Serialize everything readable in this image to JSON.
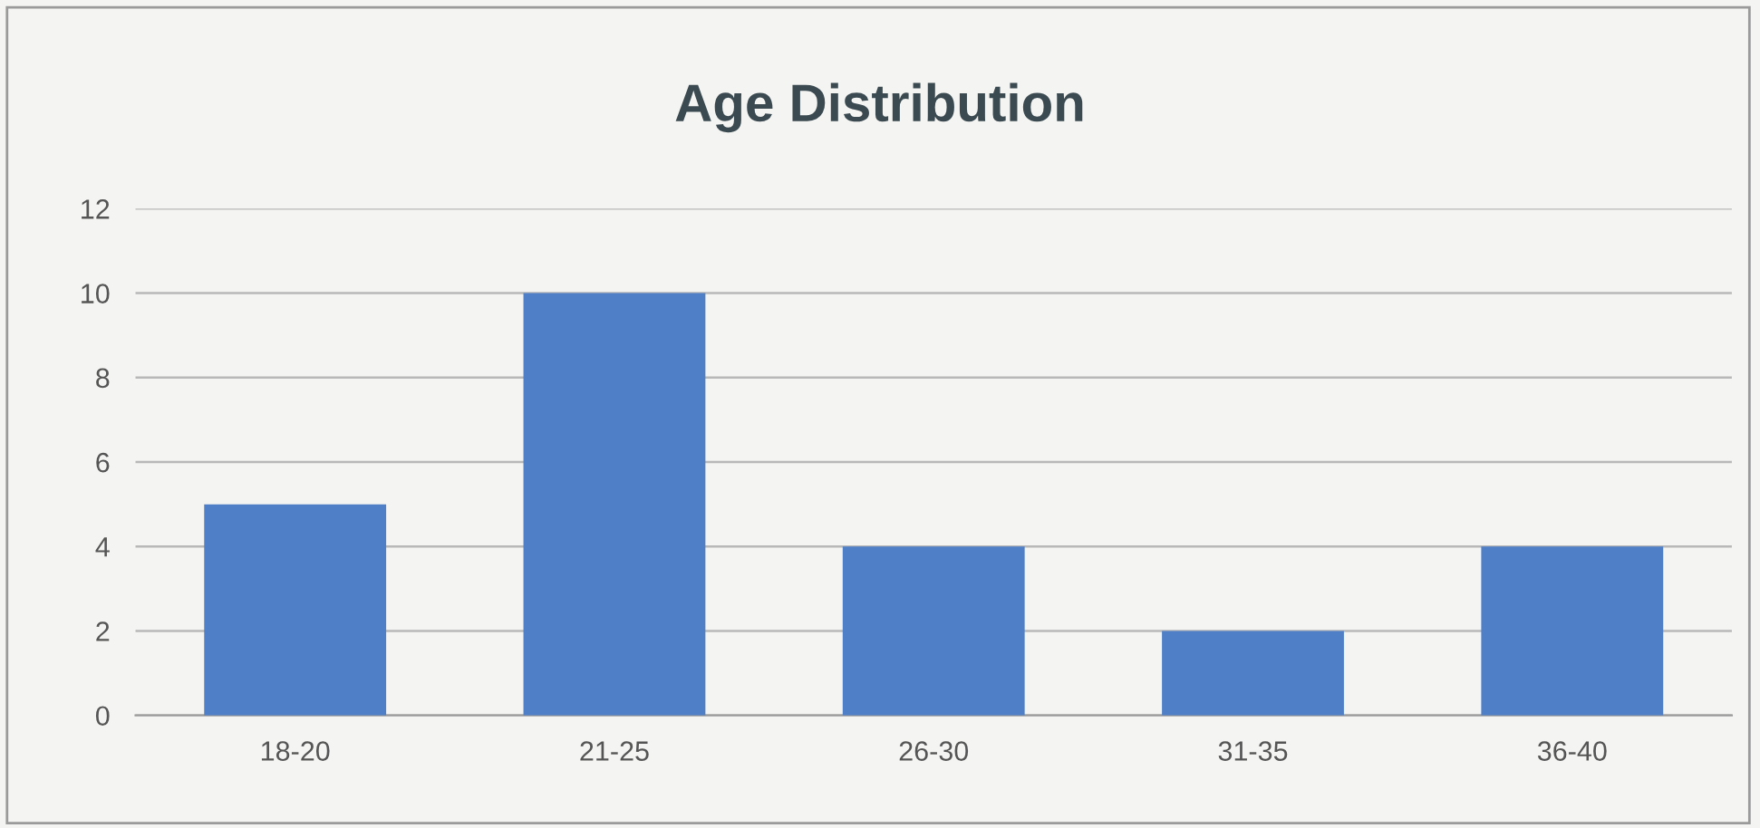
{
  "chart_data": {
    "type": "bar",
    "title": "Age Distribution",
    "categories": [
      "18-20",
      "21-25",
      "26-30",
      "31-35",
      "36-40"
    ],
    "values": [
      5,
      10,
      4,
      2,
      4
    ],
    "color": "#4f7fc6",
    "ylim": [
      0,
      12
    ],
    "yticks": [
      0,
      2,
      4,
      6,
      8,
      10,
      12
    ],
    "grid": "y"
  }
}
